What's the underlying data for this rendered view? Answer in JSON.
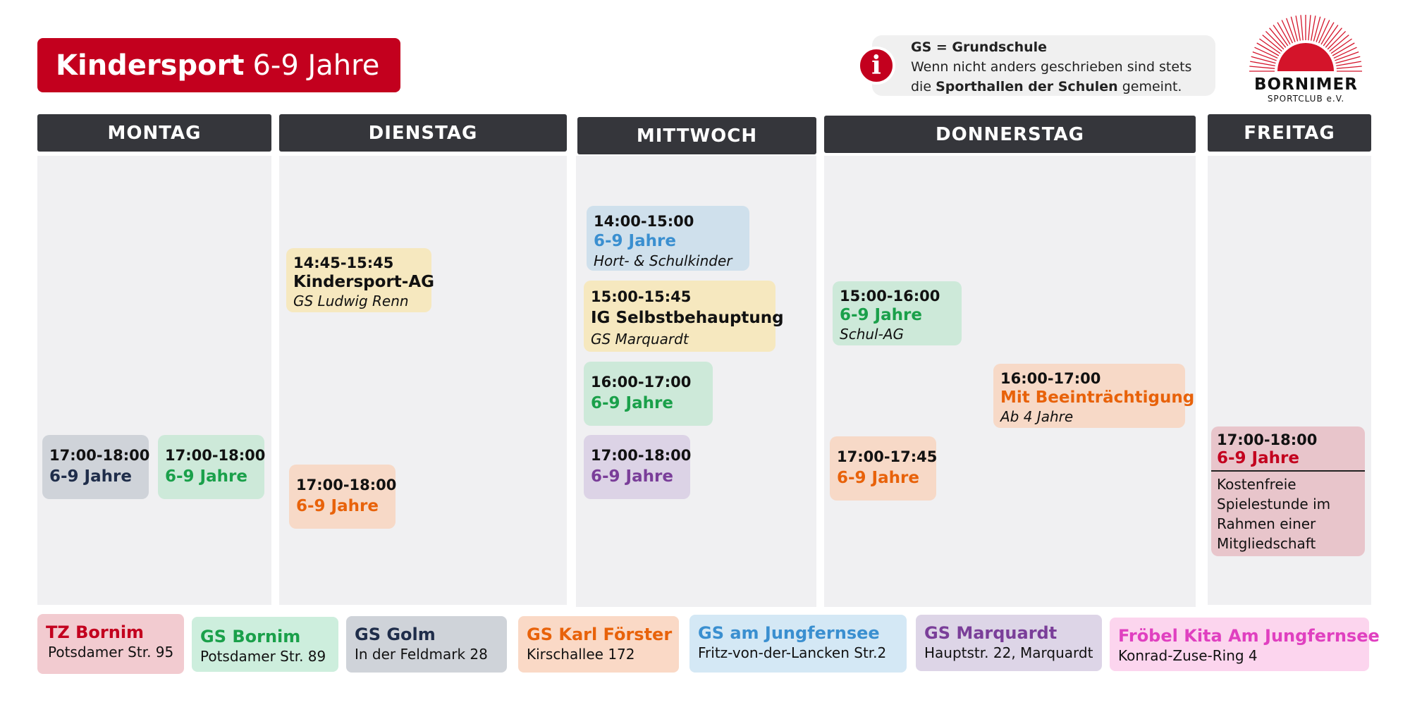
{
  "title": {
    "bold": "Kindersport",
    "rest": "6-9 Jahre"
  },
  "info": {
    "icon": "info-icon",
    "line1": "GS = Grundschule",
    "line2": "Wenn nicht anders geschrieben sind stets",
    "line3_pre": "die ",
    "line3_bold": "Sporthallen der Schulen",
    "line3_post": " gemeint."
  },
  "logo": {
    "name": "BORNIMER",
    "sub": "SPORTCLUB e.V."
  },
  "days": [
    "MONTAG",
    "DIENSTAG",
    "MITTWOCH",
    "DONNERSTAG",
    "FREITAG"
  ],
  "colors": {
    "brand": "#c3001e",
    "header": "#35363b"
  },
  "events": {
    "mo1": {
      "time": "17:00-18:00",
      "age": "6-9 Jahre"
    },
    "mo2": {
      "time": "17:00-18:00",
      "age": "6-9 Jahre"
    },
    "di1": {
      "time": "14:45-15:45",
      "title": "Kindersport-AG",
      "sub": "GS Ludwig Renn"
    },
    "di2": {
      "time": "17:00-18:00",
      "age": "6-9 Jahre"
    },
    "mi1": {
      "time": "14:00-15:00",
      "age": "6-9 Jahre",
      "sub": "Hort- & Schulkinder"
    },
    "mi2": {
      "time": "15:00-15:45",
      "title": "IG Selbstbehauptung",
      "sub": "GS Marquardt"
    },
    "mi3": {
      "time": "16:00-17:00",
      "age": "6-9 Jahre"
    },
    "mi4": {
      "time": "17:00-18:00",
      "age": "6-9 Jahre"
    },
    "do1": {
      "time": "15:00-16:00",
      "age": "6-9 Jahre",
      "sub": "Schul-AG"
    },
    "do2": {
      "time": "16:00-17:00",
      "age": "Mit Beeinträchtigung",
      "sub": "Ab 4 Jahre"
    },
    "do3": {
      "time": "17:00-17:45",
      "age": "6-9 Jahre"
    },
    "fr1": {
      "time": "17:00-18:00",
      "age": "6-9 Jahre",
      "note1": "Kostenfreie",
      "note2": "Spielestunde im",
      "note3": "Rahmen einer",
      "note4": "Mitgliedschaft"
    }
  },
  "legend": [
    {
      "name": "TZ Bornim",
      "addr": "Potsdamer Str. 95",
      "color": "#c3001e"
    },
    {
      "name": "GS Bornim",
      "addr": "Potsdamer Str. 89",
      "color": "#1aa04a"
    },
    {
      "name": "GS Golm",
      "addr": "In der Feldmark 28",
      "color": "#1f2d4a"
    },
    {
      "name": "GS Karl Förster",
      "addr": "Kirschallee 172",
      "color": "#e8620a"
    },
    {
      "name": "GS am Jungfernsee",
      "addr": "Fritz-von-der-Lancken Str.2",
      "color": "#3a8fd0"
    },
    {
      "name": "GS Marquardt",
      "addr": "Hauptstr. 22, Marquardt",
      "color": "#7a3e99"
    },
    {
      "name": "Fröbel Kita Am Jungfernsee",
      "addr": "Konrad-Zuse-Ring 4",
      "color": "#e040c0"
    }
  ]
}
